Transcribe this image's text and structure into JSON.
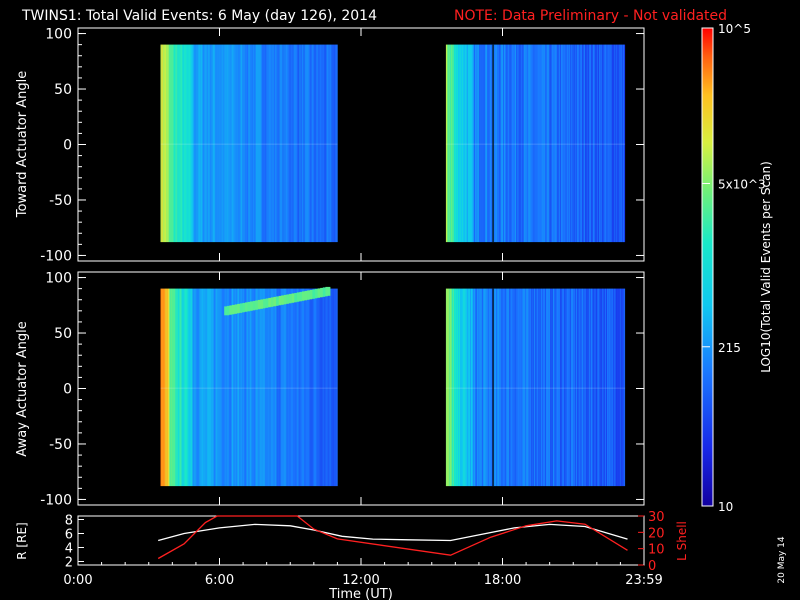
{
  "header": {
    "title": "TWINS1: Total Valid Events:  6 May (day 126), 2014",
    "note": "NOTE: Data Preliminary - Not validated"
  },
  "side_date": "20 May 14",
  "colors": {
    "background": "#000000",
    "note": "#ff2020",
    "r_line": "#ffffff",
    "lshell_line": "#ff2020"
  },
  "chart_data": [
    {
      "type": "heatmap",
      "ylabel": "Toward Actuator Angle",
      "ylim": [
        -105,
        105
      ],
      "yticks": [
        "100",
        "50",
        "0",
        "-50",
        "-100"
      ],
      "xlim": [
        0,
        24
      ],
      "data_blocks": [
        [
          3.5,
          11.0
        ],
        [
          15.6,
          23.2
        ]
      ],
      "angle_range": [
        -88,
        90
      ],
      "marker_line_hour": 17.6,
      "colorscale": "rainbow"
    },
    {
      "type": "heatmap",
      "ylabel": "Away Actuator Angle",
      "ylim": [
        -105,
        105
      ],
      "yticks": [
        "100",
        "50",
        "0",
        "-50",
        "-100"
      ],
      "xlim": [
        0,
        24
      ],
      "data_blocks": [
        [
          3.5,
          11.0
        ],
        [
          15.6,
          23.2
        ]
      ],
      "angle_range": [
        -88,
        90
      ],
      "marker_line_hour": 17.6,
      "colorscale": "rainbow"
    },
    {
      "type": "line",
      "xlabel": "Time (UT)",
      "xticks": [
        "0:00",
        "6:00",
        "12:00",
        "18:00",
        "23:59"
      ],
      "xlim": [
        0,
        24
      ],
      "y_left_label": "R [RE]",
      "y_left_ticks": [
        "8",
        "6",
        "4",
        "2"
      ],
      "y_left_lim": [
        1.5,
        8.5
      ],
      "y_right_label": "L Shell",
      "y_right_ticks": [
        "30",
        "20",
        "10",
        "0"
      ],
      "y_right_lim": [
        0,
        30
      ],
      "series": [
        {
          "axis": "left",
          "color": "#ffffff",
          "x": [
            3.4,
            4.5,
            6,
            7.5,
            9,
            10,
            11.2,
            12.5,
            14,
            15.8,
            17,
            18.5,
            20,
            21.5,
            23.3
          ],
          "y": [
            5.0,
            6.0,
            6.8,
            7.3,
            7.1,
            6.5,
            5.6,
            5.2,
            5.1,
            5.0,
            5.8,
            6.8,
            7.3,
            7.0,
            5.2
          ]
        },
        {
          "axis": "right",
          "color": "#ff2020",
          "x": [
            3.4,
            4.5,
            5.4,
            5.9,
            9.3,
            10.0,
            11.0,
            15.8,
            17.5,
            19.0,
            20.3,
            21.5,
            23.3
          ],
          "y": [
            4,
            13,
            26,
            32,
            32,
            22,
            16,
            6,
            17,
            24,
            27,
            25,
            9
          ]
        }
      ]
    }
  ],
  "colorbar": {
    "label": "LOG10(Total Valid Events per Scan)",
    "ticks": [
      {
        "label": "10^5",
        "value": 100000
      },
      {
        "label": "5x10^3",
        "value": 5000
      },
      {
        "label": "215",
        "value": 215
      },
      {
        "label": "10",
        "value": 10
      }
    ],
    "range": [
      10,
      100000
    ]
  }
}
